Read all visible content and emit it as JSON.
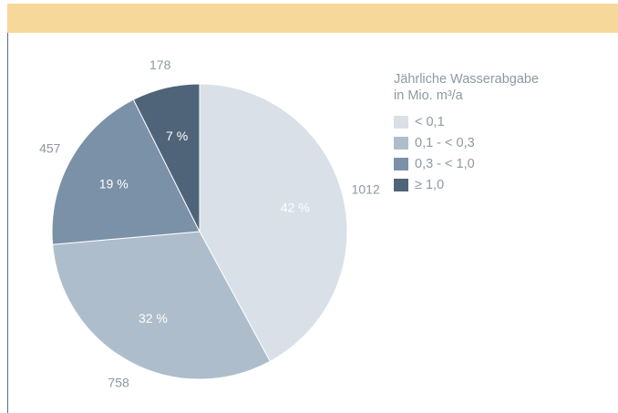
{
  "chart_data": {
    "type": "pie",
    "title": "",
    "legend": {
      "title_lines": [
        "Jährliche Wasserabgabe",
        "in Mio. m³/a"
      ],
      "placement": "right"
    },
    "slices": [
      {
        "category": "< 0,1",
        "value": 1012,
        "percent_label": "42 %",
        "color": "#d9e0e7"
      },
      {
        "category": "0,1 - < 0,3",
        "value": 758,
        "percent_label": "32 %",
        "color": "#aebdcb"
      },
      {
        "category": "0,3 - < 1,0",
        "value": 457,
        "percent_label": "19 %",
        "color": "#7b91a7"
      },
      {
        "category": "≥ 1,0",
        "value": 178,
        "percent_label": "7 %",
        "color": "#4f6479"
      }
    ]
  },
  "colors": {
    "top_band": "#f6d89a",
    "value_label": "#8f98a2",
    "percent_label": "#ffffff"
  }
}
